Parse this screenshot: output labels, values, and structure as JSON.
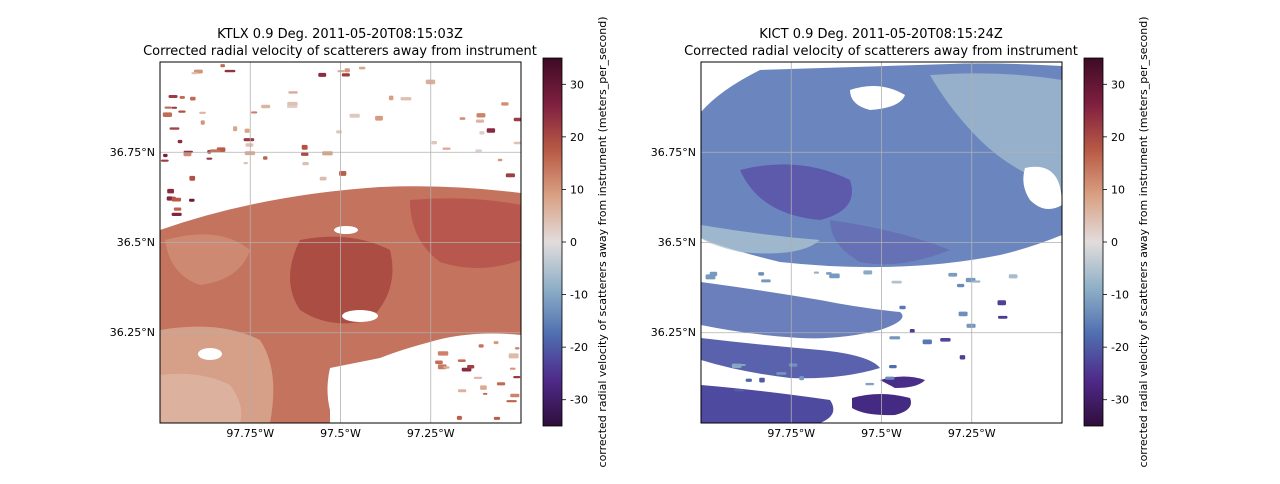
{
  "chart_data": [
    {
      "type": "heatmap",
      "title": "KTLX 0.9 Deg. 2011-05-20T08:15:03Z",
      "subtitle": "Corrected radial velocity of scatterers away from instrument",
      "xlabel": "",
      "ylabel": "",
      "x_ticks": [
        {
          "value": -97.75,
          "label": "97.75°W"
        },
        {
          "value": -97.5,
          "label": "97.5°W"
        },
        {
          "value": -97.25,
          "label": "97.25°W"
        }
      ],
      "y_ticks": [
        {
          "value": 36.75,
          "label": "36.75°N"
        },
        {
          "value": 36.5,
          "label": "36.5°N"
        },
        {
          "value": 36.25,
          "label": "36.25°N"
        }
      ],
      "xlim": [
        -98.0,
        -97.0
      ],
      "ylim": [
        36.0,
        37.0
      ],
      "grid": true,
      "dominant_sign": "positive",
      "field_range": [
        0,
        25
      ],
      "colorbar": {
        "label": "corrected radial velocity of scatterers away from instrument (meters_per_second)",
        "range": [
          -35,
          35
        ],
        "ticks": [
          30,
          20,
          10,
          0,
          -10,
          -20,
          -30
        ],
        "colormap_stops": [
          "#2f0e3a",
          "#4f2a8a",
          "#4f6fb0",
          "#8fb0c7",
          "#e2dcdc",
          "#d9a184",
          "#b85a45",
          "#7f1f40",
          "#3d0b24"
        ]
      }
    },
    {
      "type": "heatmap",
      "title": "KICT 0.9 Deg. 2011-05-20T08:15:24Z",
      "subtitle": "Corrected radial velocity of scatterers away from instrument",
      "xlabel": "",
      "ylabel": "",
      "x_ticks": [
        {
          "value": -97.75,
          "label": "97.75°W"
        },
        {
          "value": -97.5,
          "label": "97.5°W"
        },
        {
          "value": -97.25,
          "label": "97.25°W"
        }
      ],
      "y_ticks": [
        {
          "value": 36.75,
          "label": "36.75°N"
        },
        {
          "value": 36.5,
          "label": "36.5°N"
        },
        {
          "value": 36.25,
          "label": "36.25°N"
        }
      ],
      "xlim": [
        -98.0,
        -97.0
      ],
      "ylim": [
        36.0,
        37.0
      ],
      "grid": true,
      "dominant_sign": "negative",
      "field_range": [
        -30,
        -5
      ],
      "colorbar": {
        "label": "corrected radial velocity of scatterers away from instrument (meters_per_second)",
        "range": [
          -35,
          35
        ],
        "ticks": [
          30,
          20,
          10,
          0,
          -10,
          -20,
          -30
        ],
        "colormap_stops": [
          "#2f0e3a",
          "#4f2a8a",
          "#4f6fb0",
          "#8fb0c7",
          "#e2dcdc",
          "#d9a184",
          "#b85a45",
          "#7f1f40",
          "#3d0b24"
        ]
      }
    }
  ]
}
